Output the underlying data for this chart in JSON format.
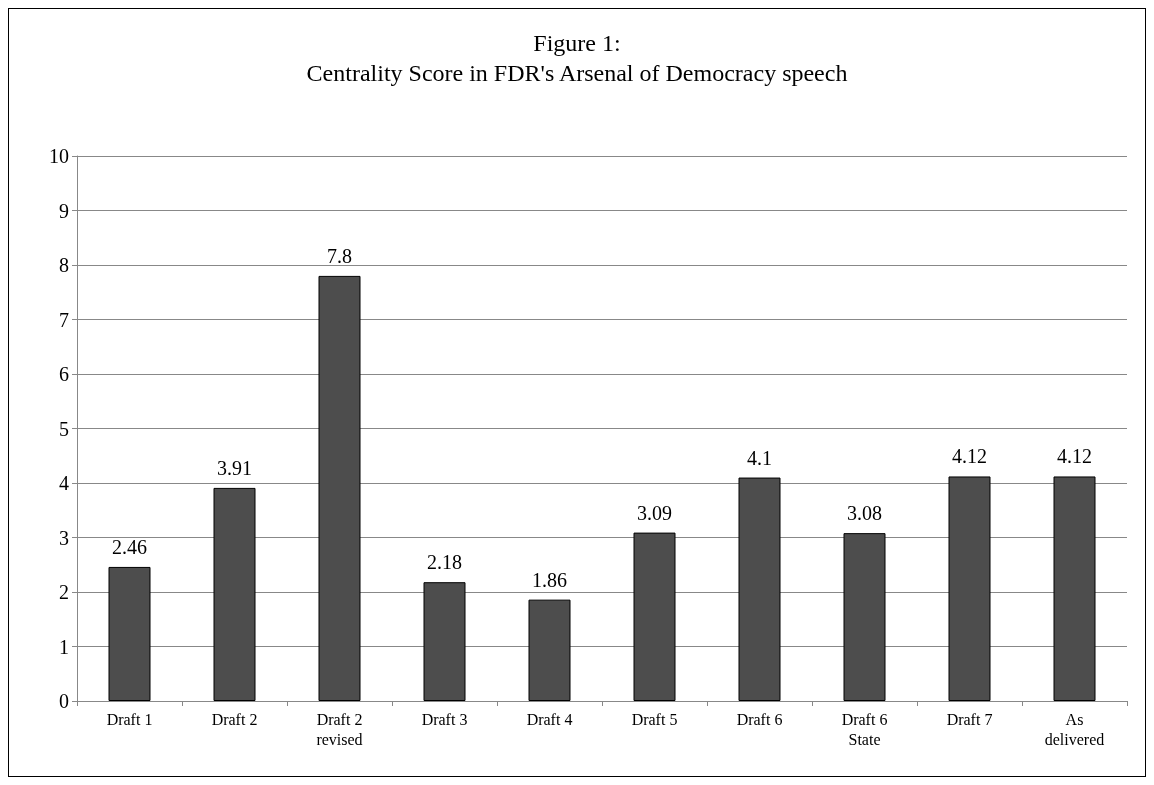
{
  "chart_data": {
    "type": "bar",
    "title": "Figure 1:\nCentrality Score in FDR's Arsenal of Democracy speech",
    "categories": [
      "Draft 1",
      "Draft 2",
      "Draft 2\nrevised",
      "Draft 3",
      "Draft 4",
      "Draft 5",
      "Draft 6",
      "Draft 6\nState",
      "Draft 7",
      "As\ndelivered"
    ],
    "values": [
      2.46,
      3.91,
      7.8,
      2.18,
      1.86,
      3.09,
      4.1,
      3.08,
      4.12,
      4.12
    ],
    "color": "#4d4d4d",
    "ylim": [
      0,
      10
    ],
    "yticks": [
      0,
      1,
      2,
      3,
      4,
      5,
      6,
      7,
      8,
      9,
      10
    ],
    "grid": "y",
    "data_labels": true
  }
}
